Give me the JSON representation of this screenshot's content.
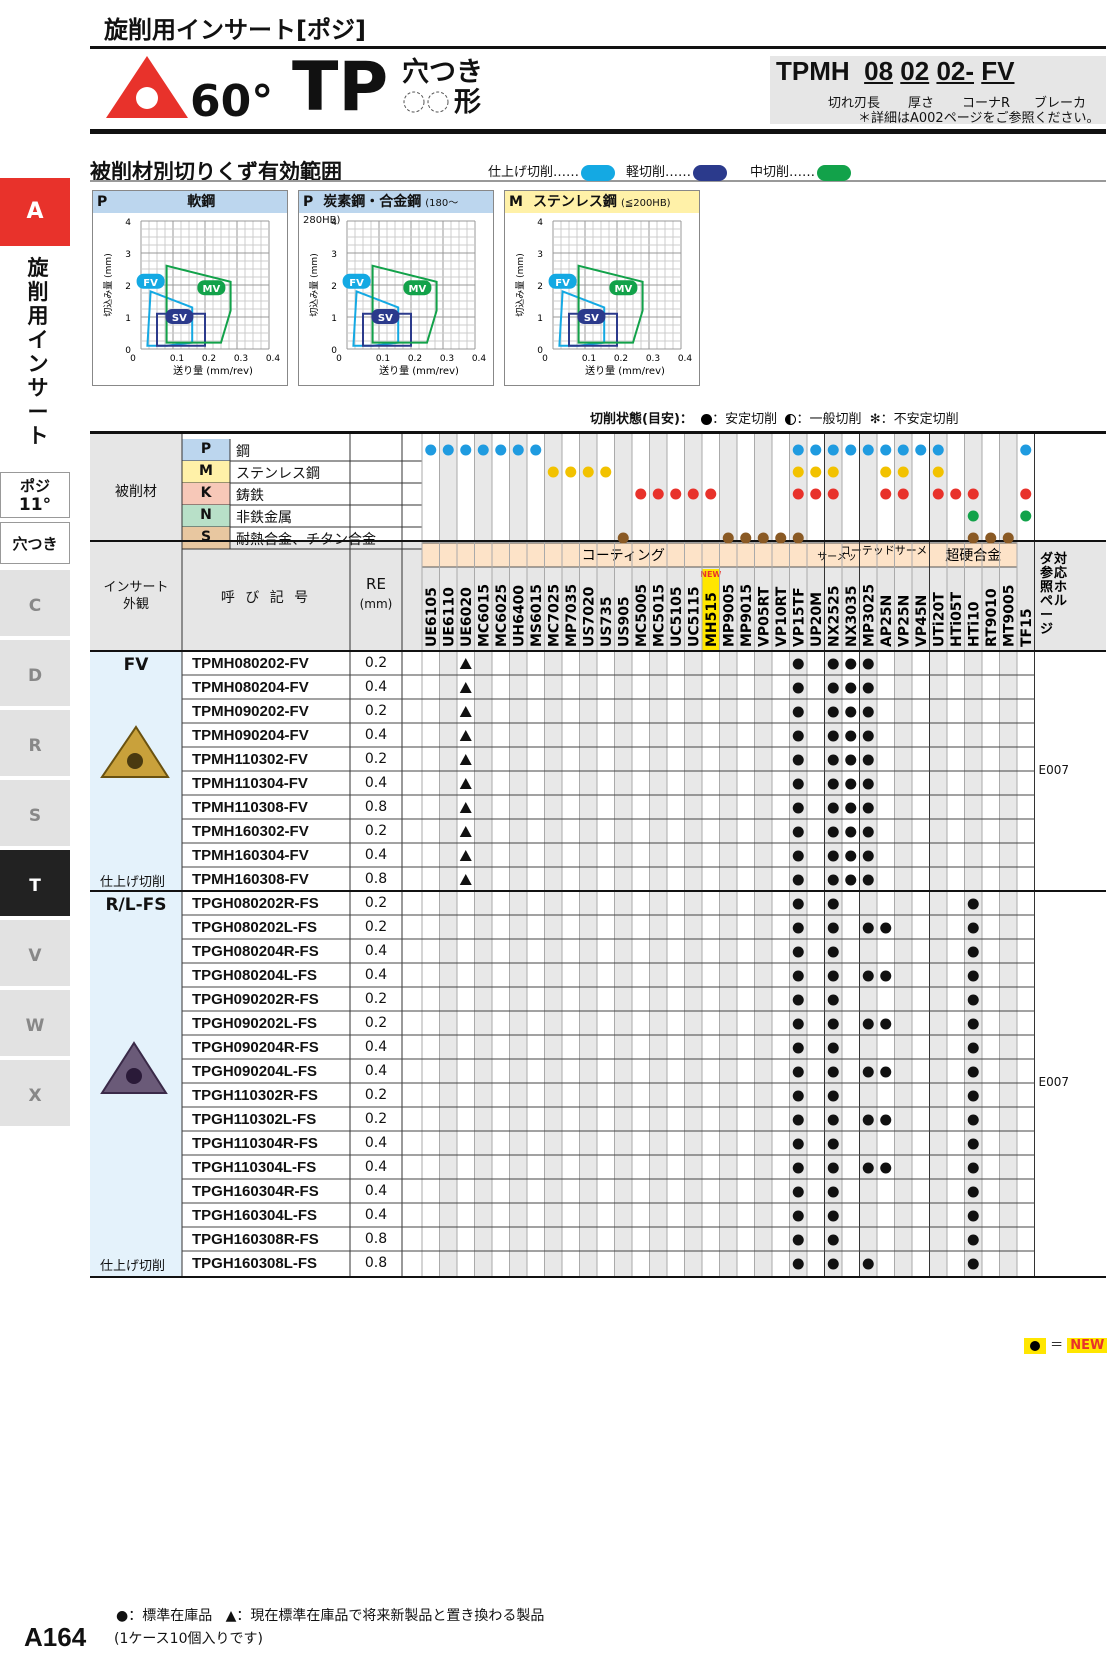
{
  "header": {
    "title": "旋削用インサート[ポジ]",
    "angle": "60°",
    "shape_code": "TP",
    "shape_desc_line1": "穴つき",
    "shape_desc_line2": "形"
  },
  "spec_code": {
    "prefix": "TPMH",
    "part1": "08",
    "part2": "02",
    "part3": "02-",
    "part4": "FV",
    "label1": "切れ刃長",
    "label2": "厚さ",
    "label3": "コーナR",
    "label4": "ブレーカ",
    "note": "＊詳細はA002ページをご参照ください。"
  },
  "chip_section": {
    "title": "被削材別切りくず有効範囲",
    "legend": [
      {
        "label": "仕上げ切削",
        "color": "#14a9e3"
      },
      {
        "label": "軽切削",
        "color": "#2b3a8c"
      },
      {
        "label": "中切削",
        "color": "#12a24a"
      }
    ],
    "charts": [
      {
        "tag": "P",
        "title": "軟鋼",
        "sub": "",
        "color": "#bcd6ee"
      },
      {
        "tag": "P",
        "title": "炭素鋼・合金鋼",
        "sub": "(180～280HB)",
        "color": "#bcd6ee"
      },
      {
        "tag": "M",
        "title": "ステンレス鋼",
        "sub": "(≦200HB)",
        "color": "#fff1a8"
      }
    ],
    "ylabel": "切込み量 (mm)",
    "xlabel": "送り量 (mm/rev)",
    "xticks": [
      "0",
      "0.1",
      "0.2",
      "0.3",
      "0.4"
    ],
    "yticks": [
      "0",
      "1",
      "2",
      "3",
      "4"
    ],
    "regions": [
      "FV",
      "SV",
      "MV"
    ]
  },
  "chart_data": {
    "type": "area",
    "xlim": [
      0,
      0.4
    ],
    "ylim": [
      0,
      4
    ],
    "xlabel": "送り量 (mm/rev)",
    "ylabel": "切込み量 (mm)",
    "series": [
      {
        "name": "FV",
        "x": [
          0.02,
          0.08,
          0.16,
          0.16,
          0.03,
          0.02
        ],
        "y": [
          0.1,
          0.1,
          0.2,
          1.3,
          1.8,
          0.1
        ]
      },
      {
        "name": "SV",
        "x": [
          0.05,
          0.2,
          0.2,
          0.05
        ],
        "y": [
          0.1,
          0.1,
          1.1,
          1.1
        ]
      },
      {
        "name": "MV",
        "x": [
          0.08,
          0.25,
          0.28,
          0.28,
          0.08
        ],
        "y": [
          0.2,
          0.2,
          1.2,
          2.1,
          2.6
        ]
      }
    ]
  },
  "conditions": {
    "title": "切削状態(目安)：",
    "stable": "：安定切削",
    "general": "：一般切削",
    "unstable": "：不安定切削"
  },
  "table": {
    "workpiece_header": "被削材",
    "materials": [
      {
        "code": "P",
        "name": "鋼",
        "color": "#bcd6ee"
      },
      {
        "code": "M",
        "name": "ステンレス鋼",
        "color": "#fff1a8"
      },
      {
        "code": "K",
        "name": "鋳鉄",
        "color": "#f7c8b8"
      },
      {
        "code": "N",
        "name": "非鉄金属",
        "color": "#b8e0c8"
      },
      {
        "code": "S",
        "name": "耐熱合金、チタン合金",
        "color": "#e8c7a0"
      }
    ],
    "insert_header": "インサート\n外観",
    "code_header": "呼 び 記 号",
    "re_header": "RE",
    "re_unit": "(mm)",
    "ref_header": "対応ホルダ参照ページ",
    "groups": [
      {
        "label": "コーティング",
        "span": [
          0,
          22
        ]
      },
      {
        "label": "サーメット",
        "span": [
          23,
          24
        ]
      },
      {
        "label": "コーテッドサーメット",
        "span": [
          25,
          28
        ]
      },
      {
        "label": "超硬合金",
        "span": [
          29,
          33
        ]
      }
    ],
    "grades": [
      "UE6105",
      "UE6110",
      "UE6020",
      "MC6015",
      "MC6025",
      "UH6400",
      "MS6015",
      "MC7025",
      "MP7035",
      "US7020",
      "US735",
      "US905",
      "MC5005",
      "MC5015",
      "UC5105",
      "UC5115",
      "MH515",
      "MP9005",
      "MP9015",
      "VP05RT",
      "VP10RT",
      "VP15TF",
      "UP20M",
      "NX2525",
      "NX3035",
      "MP3025",
      "AP25N",
      "VP25N",
      "VP45N",
      "UTi20T",
      "HTi05T",
      "HTi10",
      "RT9010",
      "MT9005",
      "TF15"
    ],
    "new_badge": "NEW",
    "sections": [
      {
        "type": "FV",
        "caption": "仕上げ切削",
        "ref": "E007",
        "rows": [
          {
            "code": "TPMH080202-FV",
            "re": "0.2"
          },
          {
            "code": "TPMH080204-FV",
            "re": "0.4"
          },
          {
            "code": "TPMH090202-FV",
            "re": "0.2"
          },
          {
            "code": "TPMH090204-FV",
            "re": "0.4"
          },
          {
            "code": "TPMH110302-FV",
            "re": "0.2"
          },
          {
            "code": "TPMH110304-FV",
            "re": "0.4"
          },
          {
            "code": "TPMH110308-FV",
            "re": "0.8"
          },
          {
            "code": "TPMH160302-FV",
            "re": "0.2"
          },
          {
            "code": "TPMH160304-FV",
            "re": "0.4"
          },
          {
            "code": "TPMH160308-FV",
            "re": "0.8"
          }
        ]
      },
      {
        "type": "R/L-FS",
        "caption": "仕上げ切削",
        "ref": "E007",
        "rows": [
          {
            "code": "TPGH080202R-FS",
            "re": "0.2"
          },
          {
            "code": "TPGH080202L-FS",
            "re": "0.2"
          },
          {
            "code": "TPGH080204R-FS",
            "re": "0.4"
          },
          {
            "code": "TPGH080204L-FS",
            "re": "0.4"
          },
          {
            "code": "TPGH090202R-FS",
            "re": "0.2"
          },
          {
            "code": "TPGH090202L-FS",
            "re": "0.2"
          },
          {
            "code": "TPGH090204R-FS",
            "re": "0.4"
          },
          {
            "code": "TPGH090204L-FS",
            "re": "0.4"
          },
          {
            "code": "TPGH110302R-FS",
            "re": "0.2"
          },
          {
            "code": "TPGH110302L-FS",
            "re": "0.2"
          },
          {
            "code": "TPGH110304R-FS",
            "re": "0.4"
          },
          {
            "code": "TPGH110304L-FS",
            "re": "0.4"
          },
          {
            "code": "TPGH160304R-FS",
            "re": "0.4"
          },
          {
            "code": "TPGH160304L-FS",
            "re": "0.4"
          },
          {
            "code": "TPGH160308R-FS",
            "re": "0.8"
          },
          {
            "code": "TPGH160308L-FS",
            "re": "0.8"
          }
        ]
      }
    ]
  },
  "new_legend": {
    "eq": "＝",
    "badge": "NEW"
  },
  "sidebar": {
    "section": "A",
    "category": "旋削用インサート",
    "posi_label": "ポジ",
    "posi_angle": "11°",
    "hole_label": "穴つき",
    "tabs": [
      "C",
      "D",
      "R",
      "S",
      "T",
      "V",
      "W",
      "X"
    ],
    "active": "T"
  },
  "footer": {
    "page": "A164",
    "note1_a": "●：標準在庫品",
    "note1_b": "▲：現在標準在庫品で将来新製品と置き換わる製品",
    "note2": "(1ケース10個入りです)"
  }
}
